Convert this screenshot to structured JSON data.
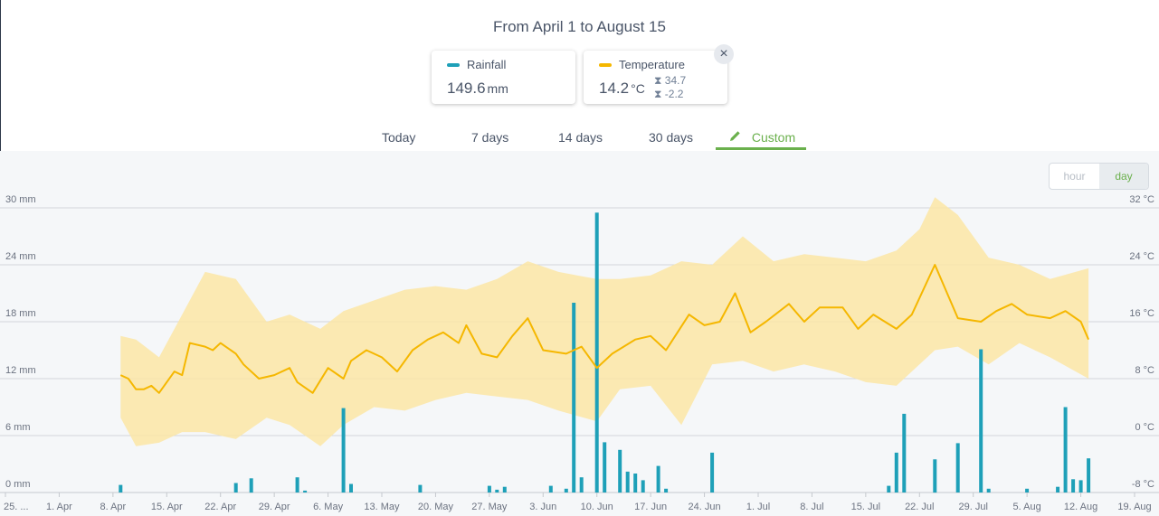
{
  "header": {
    "title": "From April 1 to August 15"
  },
  "cards": {
    "rainfall": {
      "label": "Rainfall",
      "value": "149.6",
      "unit": "mm",
      "color": "#1ea0b8"
    },
    "temperature": {
      "label": "Temperature",
      "value": "14.2",
      "unit": "°C",
      "max": "34.7",
      "min": "-2.2",
      "color": "#f5b700"
    }
  },
  "close_icon": "×",
  "pencil_icon": "pencil-icon",
  "tabs": [
    {
      "label": "Today",
      "active": false
    },
    {
      "label": "7 days",
      "active": false
    },
    {
      "label": "14 days",
      "active": false
    },
    {
      "label": "30 days",
      "active": false
    },
    {
      "label": "Custom",
      "active": true
    }
  ],
  "granularity": {
    "hour": "hour",
    "day": "day",
    "selected": "day"
  },
  "colors": {
    "accent": "#6ab04c",
    "rain": "#1ea0b8",
    "temp_line": "#f5b700",
    "temp_band": "#fbe6a6"
  },
  "chart_data": {
    "type": "bar",
    "left_axis": {
      "unit": "mm",
      "ticks": [
        "0 mm",
        "6 mm",
        "12 mm",
        "18 mm",
        "24 mm",
        "30 mm"
      ],
      "range": [
        0,
        30
      ]
    },
    "right_axis": {
      "unit": "°C",
      "ticks": [
        "-8 °C",
        "0 °C",
        "8 °C",
        "16 °C",
        "24 °C",
        "32 °C"
      ],
      "range": [
        -8,
        32
      ]
    },
    "x_tick_labels": [
      "25. ...",
      "1. Apr",
      "8. Apr",
      "15. Apr",
      "22. Apr",
      "29. Apr",
      "6. May",
      "13. May",
      "20. May",
      "27. May",
      "3. Jun",
      "10. Jun",
      "17. Jun",
      "24. Jun",
      "1. Jul",
      "8. Jul",
      "15. Jul",
      "22. Jul",
      "29. Jul",
      "5. Aug",
      "12. Aug",
      "19. Aug"
    ],
    "x_tick_dates": [
      "2024-03-25",
      "2024-04-01",
      "2024-04-08",
      "2024-04-15",
      "2024-04-22",
      "2024-04-29",
      "2024-05-06",
      "2024-05-13",
      "2024-05-20",
      "2024-05-27",
      "2024-06-03",
      "2024-06-10",
      "2024-06-17",
      "2024-06-24",
      "2024-07-01",
      "2024-07-08",
      "2024-07-15",
      "2024-07-22",
      "2024-07-29",
      "2024-08-05",
      "2024-08-12",
      "2024-08-19"
    ],
    "grid": true,
    "series": [
      {
        "name": "Rainfall",
        "kind": "bar",
        "axis": "left",
        "points": [
          [
            "2024-04-09",
            0.8
          ],
          [
            "2024-04-24",
            1.0
          ],
          [
            "2024-04-26",
            1.5
          ],
          [
            "2024-05-02",
            1.6
          ],
          [
            "2024-05-03",
            0.2
          ],
          [
            "2024-05-08",
            8.9
          ],
          [
            "2024-05-09",
            0.9
          ],
          [
            "2024-05-18",
            0.8
          ],
          [
            "2024-05-27",
            0.7
          ],
          [
            "2024-05-28",
            0.3
          ],
          [
            "2024-05-29",
            0.6
          ],
          [
            "2024-06-04",
            0.7
          ],
          [
            "2024-06-06",
            0.4
          ],
          [
            "2024-06-07",
            20.0
          ],
          [
            "2024-06-08",
            1.6
          ],
          [
            "2024-06-10",
            29.5
          ],
          [
            "2024-06-11",
            5.3
          ],
          [
            "2024-06-13",
            4.5
          ],
          [
            "2024-06-14",
            2.2
          ],
          [
            "2024-06-15",
            2.0
          ],
          [
            "2024-06-16",
            1.3
          ],
          [
            "2024-06-18",
            2.8
          ],
          [
            "2024-06-19",
            0.4
          ],
          [
            "2024-06-25",
            4.2
          ],
          [
            "2024-07-18",
            0.7
          ],
          [
            "2024-07-19",
            4.2
          ],
          [
            "2024-07-20",
            8.3
          ],
          [
            "2024-07-24",
            3.5
          ],
          [
            "2024-07-27",
            5.2
          ],
          [
            "2024-07-30",
            15.1
          ],
          [
            "2024-07-31",
            0.4
          ],
          [
            "2024-08-05",
            0.4
          ],
          [
            "2024-08-09",
            0.6
          ],
          [
            "2024-08-10",
            9.0
          ],
          [
            "2024-08-11",
            1.4
          ],
          [
            "2024-08-12",
            1.3
          ],
          [
            "2024-08-13",
            3.6
          ]
        ]
      },
      {
        "name": "Temperature",
        "kind": "line",
        "axis": "right",
        "points": [
          [
            "2024-04-09",
            8.5
          ],
          [
            "2024-04-10",
            8.0
          ],
          [
            "2024-04-11",
            6.5
          ],
          [
            "2024-04-12",
            6.5
          ],
          [
            "2024-04-13",
            7.0
          ],
          [
            "2024-04-14",
            6.0
          ],
          [
            "2024-04-16",
            9.0
          ],
          [
            "2024-04-17",
            8.5
          ],
          [
            "2024-04-18",
            13.0
          ],
          [
            "2024-04-20",
            12.5
          ],
          [
            "2024-04-21",
            12.0
          ],
          [
            "2024-04-22",
            13.0
          ],
          [
            "2024-04-24",
            11.5
          ],
          [
            "2024-04-25",
            10.0
          ],
          [
            "2024-04-27",
            8.0
          ],
          [
            "2024-04-29",
            8.5
          ],
          [
            "2024-05-01",
            9.5
          ],
          [
            "2024-05-02",
            7.5
          ],
          [
            "2024-05-04",
            6.0
          ],
          [
            "2024-05-06",
            9.5
          ],
          [
            "2024-05-08",
            8.0
          ],
          [
            "2024-05-09",
            10.5
          ],
          [
            "2024-05-11",
            12.0
          ],
          [
            "2024-05-13",
            11.0
          ],
          [
            "2024-05-15",
            9.0
          ],
          [
            "2024-05-17",
            12.0
          ],
          [
            "2024-05-19",
            13.5
          ],
          [
            "2024-05-21",
            14.5
          ],
          [
            "2024-05-23",
            13.0
          ],
          [
            "2024-05-24",
            15.5
          ],
          [
            "2024-05-26",
            11.5
          ],
          [
            "2024-05-28",
            11.0
          ],
          [
            "2024-05-30",
            14.0
          ],
          [
            "2024-06-01",
            16.5
          ],
          [
            "2024-06-03",
            12.0
          ],
          [
            "2024-06-06",
            11.5
          ],
          [
            "2024-06-08",
            12.5
          ],
          [
            "2024-06-10",
            9.5
          ],
          [
            "2024-06-12",
            11.5
          ],
          [
            "2024-06-15",
            13.5
          ],
          [
            "2024-06-17",
            14.0
          ],
          [
            "2024-06-19",
            12.0
          ],
          [
            "2024-06-22",
            17.0
          ],
          [
            "2024-06-24",
            15.5
          ],
          [
            "2024-06-26",
            16.0
          ],
          [
            "2024-06-28",
            20.0
          ],
          [
            "2024-06-30",
            14.5
          ],
          [
            "2024-07-02",
            16.0
          ],
          [
            "2024-07-05",
            18.5
          ],
          [
            "2024-07-07",
            16.0
          ],
          [
            "2024-07-09",
            18.0
          ],
          [
            "2024-07-12",
            18.0
          ],
          [
            "2024-07-14",
            15.0
          ],
          [
            "2024-07-16",
            17.0
          ],
          [
            "2024-07-19",
            15.0
          ],
          [
            "2024-07-21",
            17.0
          ],
          [
            "2024-07-24",
            24.0
          ],
          [
            "2024-07-27",
            16.5
          ],
          [
            "2024-07-30",
            16.0
          ],
          [
            "2024-08-01",
            17.5
          ],
          [
            "2024-08-03",
            18.5
          ],
          [
            "2024-08-05",
            17.0
          ],
          [
            "2024-08-08",
            16.5
          ],
          [
            "2024-08-10",
            17.5
          ],
          [
            "2024-08-12",
            16.0
          ],
          [
            "2024-08-13",
            13.5
          ]
        ]
      },
      {
        "name": "Temperature range",
        "kind": "area",
        "axis": "right",
        "points": [
          [
            "2024-04-09",
            2.5,
            14.0
          ],
          [
            "2024-04-11",
            -1.5,
            13.5
          ],
          [
            "2024-04-14",
            -1.0,
            11.0
          ],
          [
            "2024-04-17",
            0.5,
            17.0
          ],
          [
            "2024-04-20",
            0.5,
            23.0
          ],
          [
            "2024-04-24",
            -0.5,
            22.0
          ],
          [
            "2024-04-28",
            2.5,
            16.0
          ],
          [
            "2024-05-01",
            1.5,
            17.0
          ],
          [
            "2024-05-05",
            -1.5,
            15.0
          ],
          [
            "2024-05-08",
            1.5,
            17.5
          ],
          [
            "2024-05-12",
            4.0,
            19.0
          ],
          [
            "2024-05-16",
            3.5,
            20.5
          ],
          [
            "2024-05-20",
            5.0,
            21.0
          ],
          [
            "2024-05-24",
            6.0,
            20.5
          ],
          [
            "2024-05-28",
            5.5,
            22.0
          ],
          [
            "2024-06-01",
            5.0,
            24.5
          ],
          [
            "2024-06-05",
            3.5,
            23.0
          ],
          [
            "2024-06-10",
            2.0,
            22.0
          ],
          [
            "2024-06-13",
            6.5,
            22.0
          ],
          [
            "2024-06-17",
            7.0,
            22.5
          ],
          [
            "2024-06-21",
            1.5,
            24.5
          ],
          [
            "2024-06-25",
            10.0,
            24.0
          ],
          [
            "2024-06-29",
            10.5,
            28.0
          ],
          [
            "2024-07-03",
            9.0,
            24.5
          ],
          [
            "2024-07-07",
            10.0,
            25.5
          ],
          [
            "2024-07-11",
            9.0,
            25.0
          ],
          [
            "2024-07-15",
            7.5,
            24.5
          ],
          [
            "2024-07-19",
            7.0,
            26.0
          ],
          [
            "2024-07-22",
            10.0,
            29.0
          ],
          [
            "2024-07-24",
            12.0,
            33.5
          ],
          [
            "2024-07-27",
            12.5,
            31.0
          ],
          [
            "2024-07-31",
            10.0,
            25.0
          ],
          [
            "2024-08-04",
            13.0,
            24.0
          ],
          [
            "2024-08-08",
            11.0,
            22.0
          ],
          [
            "2024-08-13",
            8.0,
            23.5
          ]
        ]
      }
    ]
  }
}
